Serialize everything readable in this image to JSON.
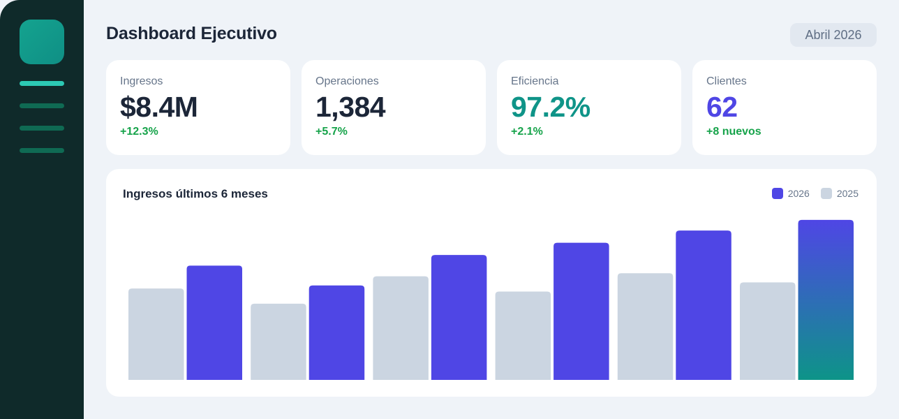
{
  "sidebar": {
    "logo": "app-logo",
    "nav_items": [
      "nav-item-1",
      "nav-item-2",
      "nav-item-3",
      "nav-item-4"
    ],
    "active_index": 0
  },
  "header": {
    "title": "Dashboard Ejecutivo",
    "period": "Abril 2026"
  },
  "kpis": [
    {
      "label": "Ingresos",
      "value": "$8.4M",
      "delta": "+12.3%",
      "value_color": "#1c2638"
    },
    {
      "label": "Operaciones",
      "value": "1,384",
      "delta": "+5.7%",
      "value_color": "#1c2638"
    },
    {
      "label": "Eficiencia",
      "value": "97.2%",
      "delta": "+2.1%",
      "value_color": "#0f9488"
    },
    {
      "label": "Clientes",
      "value": "62",
      "delta": "+8 nuevos",
      "value_color": "#4f46e5"
    }
  ],
  "colors": {
    "current": "#4f46e5",
    "previous": "#cbd5e1",
    "highlight_end": "#0d9488"
  },
  "chart_data": {
    "type": "bar",
    "title": "Ingresos últimos 6 meses",
    "xlabel": "",
    "ylabel": "",
    "categories": [
      "",
      "",
      "",
      "",
      "",
      ""
    ],
    "ylim": [
      0,
      220
    ],
    "grid": false,
    "legend": "top-right",
    "series": [
      {
        "name": "2025",
        "values": [
          120,
          100,
          136,
          116,
          140,
          128
        ]
      },
      {
        "name": "2026",
        "values": [
          150,
          124,
          164,
          180,
          196,
          210
        ]
      }
    ]
  }
}
